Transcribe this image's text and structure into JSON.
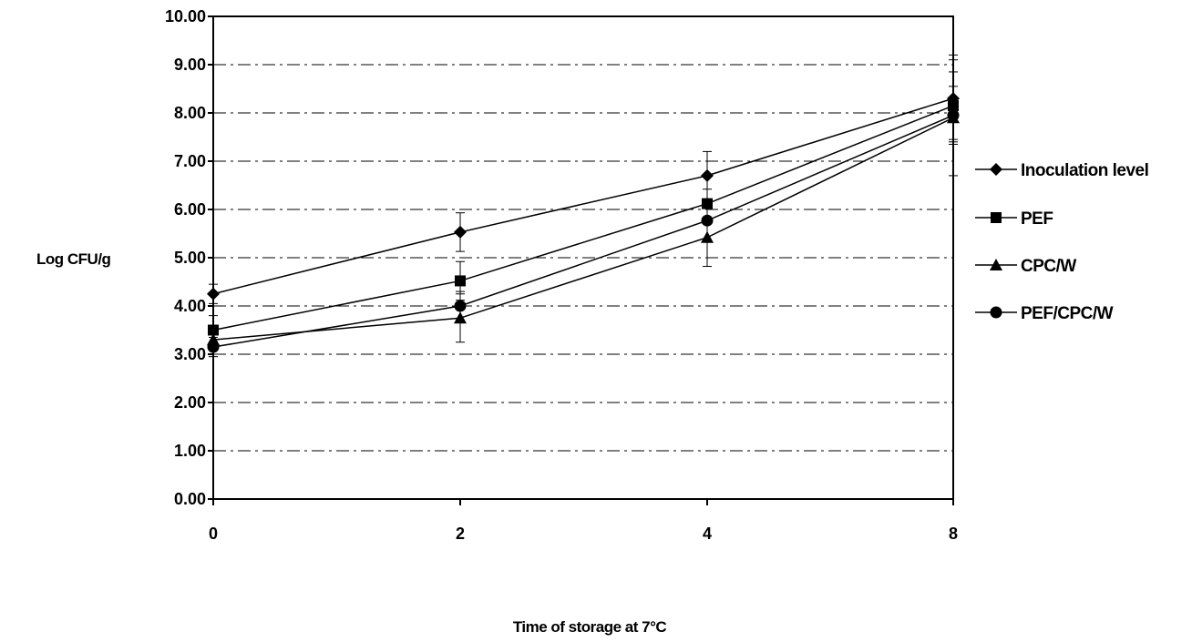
{
  "chart_data": {
    "type": "line",
    "title": "",
    "xlabel": "Time of storage at 7°C",
    "ylabel": "Log CFU/g",
    "categories": [
      "0",
      "2",
      "4",
      "8"
    ],
    "yticks": [
      "0.00",
      "1.00",
      "2.00",
      "3.00",
      "4.00",
      "5.00",
      "6.00",
      "7.00",
      "8.00",
      "9.00",
      "10.00"
    ],
    "ylim": [
      0,
      10
    ],
    "grid": "horizontal dash-dot",
    "legend_position": "right",
    "series": [
      {
        "name": "Inoculation level",
        "marker": "diamond",
        "values": [
          4.25,
          5.53,
          6.7,
          8.3
        ],
        "errors": [
          0.2,
          0.4,
          0.5,
          0.9
        ]
      },
      {
        "name": "PEF",
        "marker": "square",
        "values": [
          3.5,
          4.52,
          6.12,
          8.15
        ],
        "errors": [
          0.3,
          0.4,
          0.3,
          0.7
        ]
      },
      {
        "name": "CPC/W",
        "marker": "triangle",
        "values": [
          3.3,
          3.75,
          5.42,
          7.9
        ],
        "errors": [
          0.3,
          0.5,
          0.6,
          1.2
        ]
      },
      {
        "name": "PEF/CPC/W",
        "marker": "circle",
        "values": [
          3.15,
          4.0,
          5.77,
          7.95
        ],
        "errors": [
          0.2,
          0.3,
          0.4,
          0.6
        ]
      }
    ]
  }
}
